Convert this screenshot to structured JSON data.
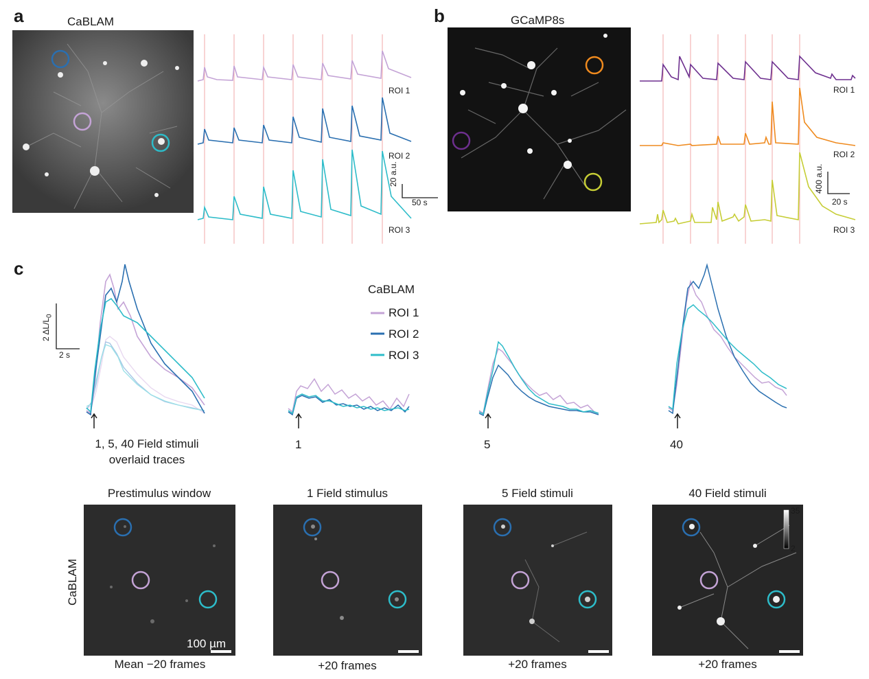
{
  "panels": {
    "a": {
      "letter": "a",
      "image_title": "CaBLAM",
      "roi_labels": [
        "ROI 1",
        "ROI 2",
        "ROI 3"
      ],
      "scale_y": "20 a.u.",
      "scale_x": "50 s"
    },
    "b": {
      "letter": "b",
      "image_title": "GCaMP8s",
      "roi_labels": [
        "ROI 1",
        "ROI 2",
        "ROI 3"
      ],
      "scale_y": "400 a.u.",
      "scale_x": "20 s"
    },
    "c": {
      "letter": "c",
      "scale_y": "2 ΔL/L",
      "scale_y_sub": "0",
      "scale_x": "2 s",
      "legend_title": "CaBLAM",
      "legend": [
        "ROI 1",
        "ROI 2",
        "ROI 3"
      ],
      "overlay_caption_1": "1, 5, 40 Field stimuli",
      "overlay_caption_2": "overlaid traces",
      "stim_labels": [
        "1",
        "5",
        "40"
      ],
      "image_titles": [
        "Prestimulus window",
        "1 Field stimulus",
        "5 Field stimuli",
        "40 Field stimuli"
      ],
      "image_captions": [
        "Mean −20 frames",
        "+20 frames",
        "+20 frames",
        "+20 frames"
      ],
      "row_label": "CaBLAM",
      "scalebar_label": "100 µm",
      "colorbar_max": "35",
      "colorbar_min": "2"
    }
  },
  "colors": {
    "roi1": "#c4a3d6",
    "roi2": "#2a6fb0",
    "roi3": "#2dbcc9",
    "gcamp_roi1": "#6d2f8e",
    "gcamp_roi2": "#ef8a1e",
    "gcamp_roi3": "#c6cd35",
    "stim_line": "#f2a7a7"
  }
}
